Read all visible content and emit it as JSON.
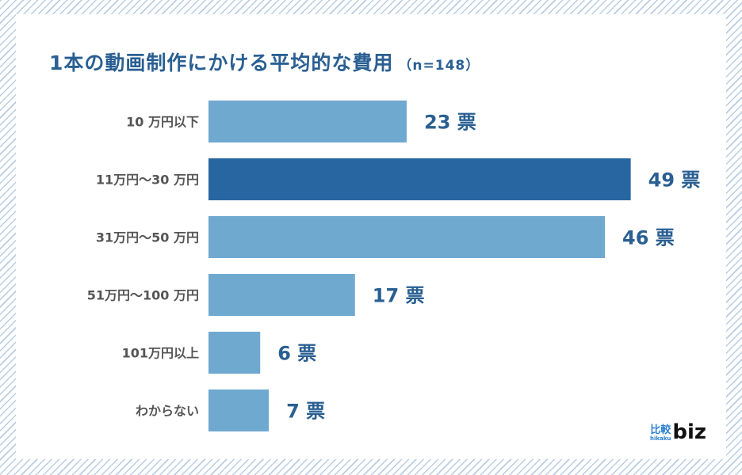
{
  "title": "1本の動画制作にかける平均的な費用",
  "sample": "（n=148）",
  "logo": {
    "jp": "比較",
    "romaji": "hikaku",
    "brand": "biz"
  },
  "colors": {
    "bar": "#70a9d0",
    "highlight": "#2866a1",
    "value_text": "#2a5f92",
    "category_text": "#555555"
  },
  "chart_data": {
    "type": "bar",
    "orientation": "horizontal",
    "title": "1本の動画制作にかける平均的な費用（n=148）",
    "categories": [
      "10 万円以下",
      "11万円〜30 万円",
      "31万円〜50 万円",
      "51万円〜100 万円",
      "101万円以上",
      "わからない"
    ],
    "values": [
      23,
      49,
      46,
      17,
      6,
      7
    ],
    "value_labels": [
      "23 票",
      "49 票",
      "46 票",
      "17 票",
      "6 票",
      "7 票"
    ],
    "highlight_index": 1,
    "unit": "票",
    "xlim": [
      0,
      50
    ],
    "grid": false
  }
}
